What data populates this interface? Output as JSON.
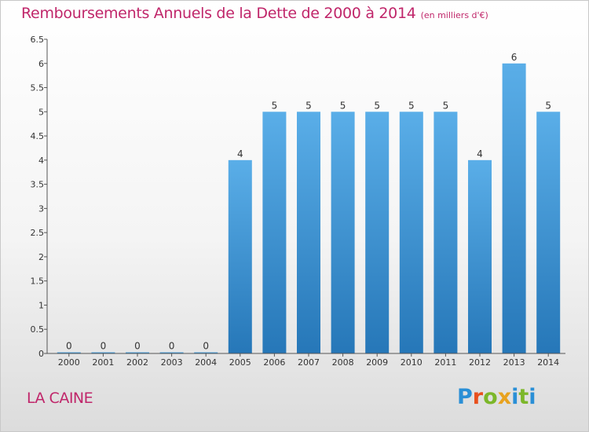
{
  "header": {
    "title": "Remboursements Annuels de la Dette de 2000 à 2014",
    "unit": "(en milliers d'€)"
  },
  "footer": {
    "commune": "LA CAINE",
    "logo_letters": [
      "P",
      "r",
      "o",
      "x",
      "i",
      "t",
      "i"
    ],
    "logo_colors": [
      "#2a8fd6",
      "#e8501e",
      "#7cb72a",
      "#e8a21e",
      "#2a8fd6",
      "#7cb72a",
      "#2a8fd6"
    ]
  },
  "colors": {
    "title": "#c0266a",
    "bar_top": "#5aaee8",
    "bar_bottom": "#2677b8",
    "axis": "#555555"
  },
  "chart_data": {
    "type": "bar",
    "title": "Remboursements Annuels de la Dette de 2000 à 2014",
    "categories": [
      "2000",
      "2001",
      "2002",
      "2003",
      "2004",
      "2005",
      "2006",
      "2007",
      "2008",
      "2009",
      "2010",
      "2011",
      "2012",
      "2013",
      "2014"
    ],
    "values": [
      0,
      0,
      0,
      0,
      0,
      4,
      5,
      5,
      5,
      5,
      5,
      5,
      4,
      6,
      5
    ],
    "data_labels": [
      "0",
      "0",
      "0",
      "0",
      "0",
      "4",
      "5",
      "5",
      "5",
      "5",
      "5",
      "5",
      "4",
      "6",
      "5"
    ],
    "ylim": [
      0,
      6.5
    ],
    "yticks": [
      0,
      0.5,
      1,
      1.5,
      2,
      2.5,
      3,
      3.5,
      4,
      4.5,
      5,
      5.5,
      6,
      6.5
    ],
    "ytick_labels": [
      "0",
      "0.5",
      "1",
      "1.5",
      "2",
      "2.5",
      "3",
      "3.5",
      "4",
      "4.5",
      "5",
      "5.5",
      "6",
      "6.5"
    ],
    "grid": false
  }
}
